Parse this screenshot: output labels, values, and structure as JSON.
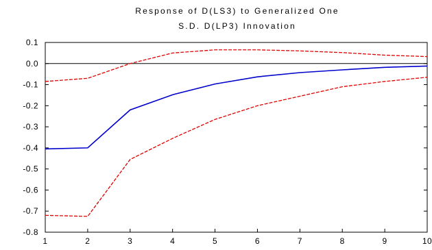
{
  "chart_data": {
    "type": "line",
    "title_lines": [
      "Response of D(LS3) to Generalized One",
      "S.D. D(LP3) Innovation"
    ],
    "xlabel": "",
    "ylabel": "",
    "x": [
      1,
      2,
      3,
      4,
      5,
      6,
      7,
      8,
      9,
      10
    ],
    "xlim": [
      1,
      10
    ],
    "ylim": [
      -0.8,
      0.1
    ],
    "x_ticks": [
      "1",
      "2",
      "3",
      "4",
      "5",
      "6",
      "7",
      "8",
      "9",
      "10"
    ],
    "y_ticks": [
      "0.1",
      "0.0",
      "-0.1",
      "-0.2",
      "-0.3",
      "-0.4",
      "-0.5",
      "-0.6",
      "-0.7",
      "-0.8"
    ],
    "zero_line": true,
    "grid": false,
    "legend": "none",
    "series": [
      {
        "role": "response",
        "style": "solid",
        "color": "#0000cc",
        "values": [
          -0.405,
          -0.4,
          -0.22,
          -0.148,
          -0.097,
          -0.063,
          -0.043,
          -0.03,
          -0.018,
          -0.012
        ]
      },
      {
        "role": "upper-band",
        "style": "dashed",
        "color": "#dd0000",
        "values": [
          -0.085,
          -0.07,
          0.0,
          0.05,
          0.065,
          0.065,
          0.06,
          0.052,
          0.04,
          0.033
        ]
      },
      {
        "role": "lower-band",
        "style": "dashed",
        "color": "#dd0000",
        "values": [
          -0.72,
          -0.725,
          -0.455,
          -0.355,
          -0.265,
          -0.2,
          -0.155,
          -0.11,
          -0.085,
          -0.065
        ]
      }
    ]
  }
}
